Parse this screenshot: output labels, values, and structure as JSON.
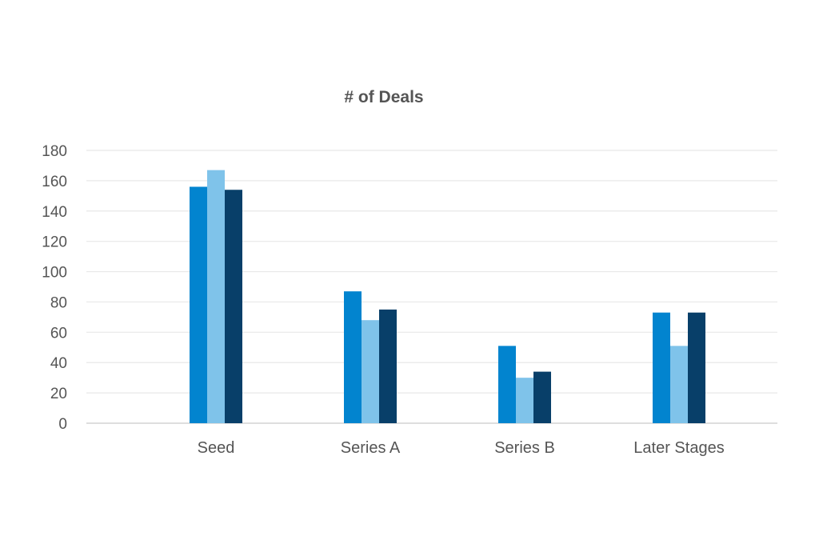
{
  "chart_data": {
    "type": "bar",
    "title": "# of Deals",
    "xlabel": "",
    "ylabel": "",
    "categories": [
      "Seed",
      "Series A",
      "Series B",
      "Later Stages"
    ],
    "series": [
      {
        "values": [
          156,
          87,
          51,
          73
        ],
        "color": "#0284cf"
      },
      {
        "values": [
          167,
          68,
          30,
          51
        ],
        "color": "#7fc3ea"
      },
      {
        "values": [
          154,
          75,
          34,
          73
        ],
        "color": "#083f69"
      }
    ],
    "ylim": [
      0,
      180
    ],
    "yticks": [
      0,
      20,
      40,
      60,
      80,
      100,
      120,
      140,
      160,
      180
    ],
    "grid": true,
    "legend": "none"
  }
}
